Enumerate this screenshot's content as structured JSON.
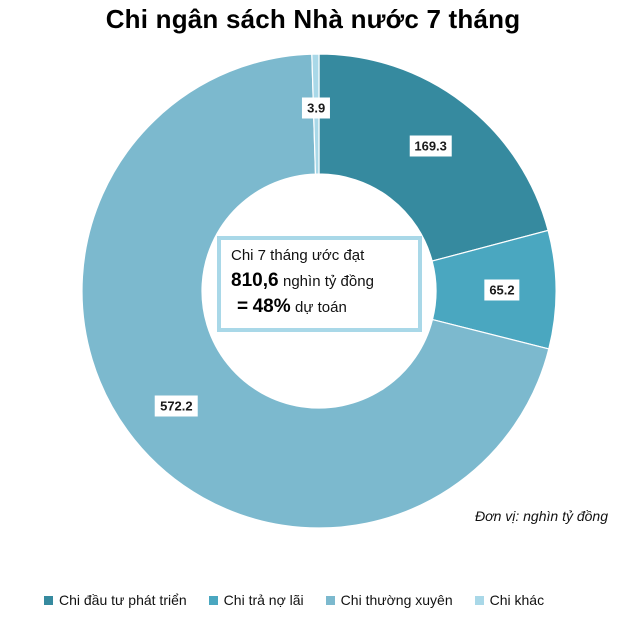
{
  "chart_data": {
    "type": "pie",
    "title": "Chi ngân sách Nhà nước 7 tháng",
    "categories": [
      "Chi đầu tư phát triển",
      "Chi trả nợ lãi",
      "Chi thường xuyên",
      "Chi khác"
    ],
    "values": [
      169.3,
      65.2,
      572.2,
      3.9
    ],
    "value_labels": [
      "169.3",
      "65.2",
      "572.2",
      "3.9"
    ],
    "colors": [
      "#368a9f",
      "#4aa7c0",
      "#7cb9ce",
      "#a9d8e8"
    ],
    "donut": true,
    "legend_position": "bottom",
    "unit_note": "Đơn vị: nghìn tỷ đồng"
  },
  "center_box": {
    "line1": "Chi 7 tháng ước đạt",
    "total_value": "810,6",
    "total_unit": "nghìn tỷ đồng",
    "percent_prefix": "=",
    "percent_value": "48%",
    "percent_suffix": "dự toán"
  }
}
